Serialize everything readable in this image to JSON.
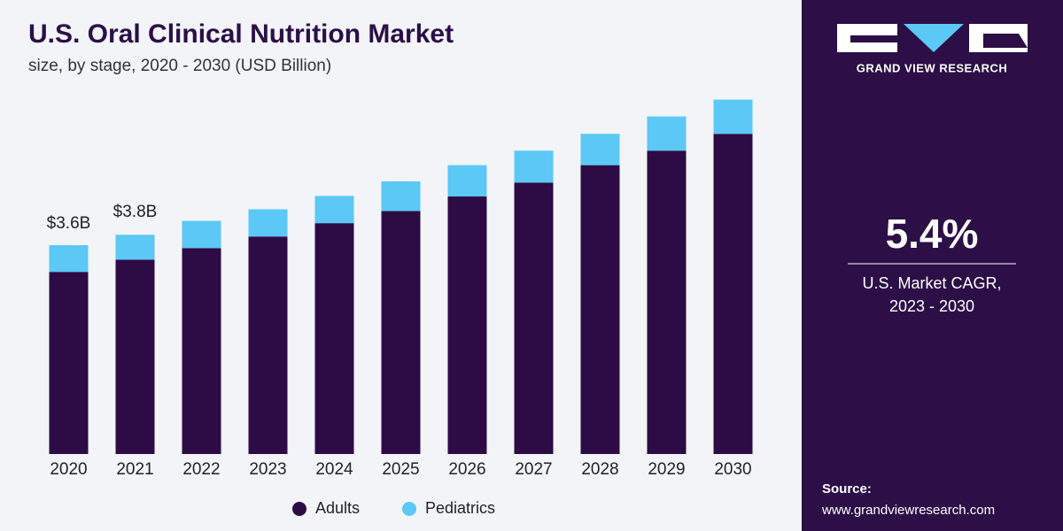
{
  "chart_data": {
    "type": "bar",
    "stacked": true,
    "title": "U.S. Oral Clinical Nutrition Market",
    "subtitle": "size, by stage, 2020 - 2030 (USD Billion)",
    "categories": [
      "2020",
      "2021",
      "2022",
      "2023",
      "2024",
      "2025",
      "2026",
      "2027",
      "2028",
      "2029",
      "2030"
    ],
    "series": [
      {
        "name": "Adults",
        "color": "#2d0b45",
        "values": [
          3.14,
          3.35,
          3.55,
          3.75,
          3.98,
          4.19,
          4.44,
          4.68,
          4.98,
          5.23,
          5.52
        ]
      },
      {
        "name": "Pediatrics",
        "color": "#5bc8f5",
        "values": [
          0.46,
          0.43,
          0.47,
          0.47,
          0.47,
          0.51,
          0.54,
          0.55,
          0.54,
          0.59,
          0.59
        ]
      }
    ],
    "annotations": [
      {
        "category": "2020",
        "value": 3.6,
        "label": "$3.6B"
      },
      {
        "category": "2021",
        "value": 3.8,
        "label": "$3.8B"
      }
    ],
    "ylim": [
      0,
      6.5
    ],
    "legend": "bottom"
  },
  "sidebar": {
    "brand": "GRAND VIEW RESEARCH",
    "cagr": "5.4%",
    "cagr_label": [
      "U.S. Market CAGR,",
      "2023 - 2030"
    ],
    "source_label": "Source:",
    "source": "www.grandviewresearch.com"
  }
}
